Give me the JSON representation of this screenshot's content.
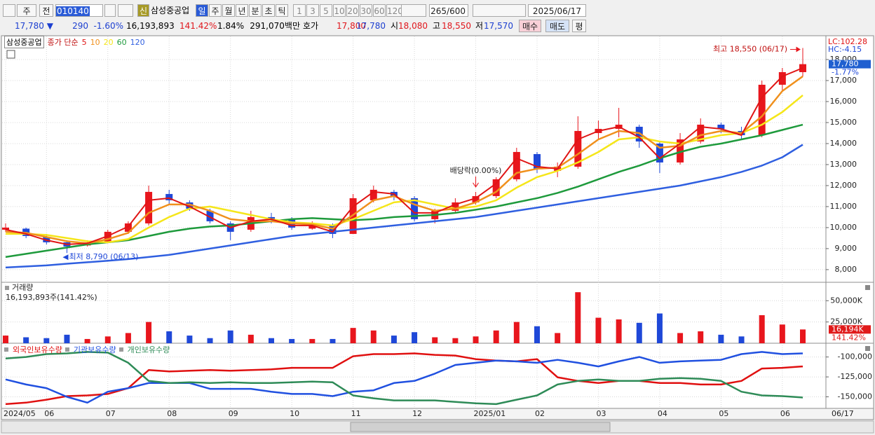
{
  "toolbar": {
    "row1": {
      "market": "주",
      "prev": "전",
      "code": "010140",
      "badge": "신",
      "name": "삼성중공업",
      "periods": [
        "일",
        "주",
        "월",
        "년",
        "분",
        "초",
        "틱"
      ],
      "intervals": [
        "1",
        "3",
        "5",
        "10",
        "20",
        "30",
        "60",
        "120"
      ],
      "count": 265,
      "max": "/600",
      "date": "2025/06/17"
    },
    "row2": {
      "price": "17,780",
      "arrow": "▼",
      "change": 290,
      "rate": "-1.60%",
      "volume": "16,193,893",
      "volume_ratio": "141.42%",
      "turnover": "1.84%",
      "amount": "291,070백만",
      "quote_label": "호가",
      "ask": "17,800",
      "bid": "17,780",
      "open_label": "시",
      "open": "18,080",
      "high_label": "고",
      "high": "18,550",
      "low_label": "저",
      "low": "17,570",
      "buy": "매수",
      "sell": "매도",
      "avg": "평"
    }
  },
  "chart_data": [
    {
      "type": "candlestick",
      "title": "삼성중공업",
      "ma_label": "종가 단순",
      "open": [
        9900,
        9950,
        9550,
        9300,
        9150,
        9300,
        9800,
        10200,
        11600,
        11200,
        10800,
        10200,
        9900,
        10500,
        10400,
        9950,
        10100,
        9700,
        11300,
        11700,
        11400,
        10400,
        10800,
        11200,
        11500,
        12300,
        13500,
        12700,
        12900,
        14500,
        14700,
        14800,
        14000,
        13100,
        14100,
        14900,
        14600,
        14400,
        16800,
        17400
      ],
      "high": [
        10200,
        10000,
        9700,
        9400,
        9400,
        9900,
        10300,
        12000,
        11800,
        11300,
        10900,
        10300,
        10800,
        10700,
        10500,
        10300,
        10200,
        11600,
        12000,
        11800,
        11500,
        10900,
        11400,
        11700,
        12400,
        13800,
        13600,
        13100,
        15300,
        15100,
        15700,
        14900,
        14100,
        14500,
        15200,
        15000,
        14800,
        17000,
        17600,
        18550
      ],
      "low": [
        9800,
        9500,
        9200,
        8790,
        9100,
        9250,
        9700,
        10100,
        11100,
        10800,
        10200,
        9400,
        9800,
        10200,
        9900,
        9900,
        9500,
        9700,
        11200,
        11300,
        10300,
        10200,
        10700,
        11100,
        11400,
        12200,
        12600,
        12400,
        12800,
        14200,
        14300,
        13800,
        12600,
        13000,
        14000,
        14500,
        14200,
        14300,
        16500,
        17200
      ],
      "close": [
        10000,
        9600,
        9300,
        9100,
        9300,
        9800,
        10200,
        11700,
        11300,
        10900,
        10300,
        9800,
        10500,
        10400,
        10000,
        10100,
        9700,
        11400,
        11800,
        11500,
        10400,
        10800,
        11200,
        11500,
        12300,
        13600,
        12800,
        12900,
        14600,
        14700,
        14900,
        14100,
        13100,
        14200,
        14900,
        14700,
        14400,
        16800,
        17400,
        17780
      ],
      "up_color": "#e8161d",
      "down_color": "#1f48d8",
      "series": [
        {
          "name": "5",
          "color": "#e01515",
          "values": [
            9900,
            9700,
            9400,
            9200,
            9250,
            9600,
            10050,
            11300,
            11400,
            11000,
            10500,
            10000,
            10300,
            10400,
            10100,
            10100,
            9800,
            11000,
            11700,
            11600,
            10700,
            10700,
            11100,
            11400,
            12100,
            13300,
            12900,
            12800,
            14200,
            14600,
            14800,
            14300,
            13300,
            14000,
            14800,
            14700,
            14400,
            16200,
            17200,
            17600
          ]
        },
        {
          "name": "10",
          "color": "#f0901c",
          "values": [
            9800,
            9750,
            9550,
            9350,
            9250,
            9450,
            9750,
            10700,
            11100,
            11100,
            10800,
            10400,
            10300,
            10300,
            10200,
            10150,
            9950,
            10600,
            11300,
            11500,
            11100,
            10800,
            10900,
            11200,
            11700,
            12600,
            12800,
            12850,
            13500,
            14200,
            14600,
            14500,
            13800,
            13900,
            14400,
            14600,
            14500,
            15300,
            16500,
            17200
          ]
        },
        {
          "name": "20",
          "color": "#f5e61a",
          "values": [
            9700,
            9700,
            9650,
            9500,
            9350,
            9300,
            9450,
            10000,
            10500,
            10900,
            11000,
            10800,
            10600,
            10400,
            10250,
            10200,
            10100,
            10400,
            10800,
            11200,
            11300,
            11100,
            10900,
            11000,
            11300,
            11900,
            12400,
            12700,
            13100,
            13600,
            14200,
            14300,
            14100,
            14000,
            14200,
            14400,
            14500,
            14900,
            15500,
            16300
          ]
        },
        {
          "name": "60",
          "color": "#1e9a3c",
          "values": [
            8600,
            8750,
            8900,
            9050,
            9200,
            9300,
            9400,
            9600,
            9800,
            9950,
            10050,
            10100,
            10200,
            10300,
            10400,
            10450,
            10400,
            10350,
            10400,
            10500,
            10550,
            10600,
            10700,
            10850,
            11000,
            11200,
            11400,
            11650,
            11950,
            12300,
            12650,
            12950,
            13300,
            13600,
            13850,
            14000,
            14200,
            14400,
            14650,
            14900
          ]
        },
        {
          "name": "120",
          "color": "#2f5fe0",
          "values": [
            8100,
            8150,
            8200,
            8280,
            8350,
            8420,
            8500,
            8600,
            8700,
            8850,
            9000,
            9150,
            9300,
            9450,
            9600,
            9700,
            9800,
            9900,
            10000,
            10100,
            10200,
            10300,
            10400,
            10500,
            10650,
            10800,
            10950,
            11100,
            11250,
            11400,
            11550,
            11700,
            11850,
            12000,
            12200,
            12400,
            12650,
            12950,
            13350,
            13950
          ]
        }
      ],
      "ylim": [
        7430,
        19000
      ],
      "yticks": [
        {
          "value": 8000,
          "label": "8,000"
        },
        {
          "value": 9000,
          "label": "9,000"
        },
        {
          "value": 10000,
          "label": "10,000"
        },
        {
          "value": 11000,
          "label": "11,000"
        },
        {
          "value": 12000,
          "label": "12,000"
        },
        {
          "value": 13000,
          "label": "13,000"
        },
        {
          "value": 14000,
          "label": "14,000"
        },
        {
          "value": 15000,
          "label": "15,000"
        },
        {
          "value": 16000,
          "label": "16,000"
        },
        {
          "value": 17000,
          "label": "17,000"
        },
        {
          "value": 18000,
          "label": "18,000"
        }
      ],
      "annotations": [
        {
          "text": "최고 18,550 (06/17)",
          "index": 39,
          "at": "high"
        },
        {
          "text": "최저 8,790 (06/13)",
          "index": 3,
          "at": "low"
        },
        {
          "text": "배당락(0.00%)",
          "index": 23,
          "at": "high"
        }
      ],
      "lc_label": "LC:102.28",
      "hc_label": "HC:-4.15",
      "last_label": "17,780",
      "last_change": "-1.77%",
      "grid": true
    },
    {
      "type": "bar",
      "title": "거래량",
      "subtitle": "16,193,893주(141.42%)",
      "values": [
        9000,
        7000,
        6000,
        10000,
        5000,
        8000,
        12000,
        25000,
        14000,
        9000,
        6000,
        15000,
        10000,
        6000,
        5000,
        5000,
        5000,
        18000,
        15000,
        9000,
        13000,
        7000,
        6000,
        8000,
        15000,
        25000,
        20000,
        12000,
        60000,
        30000,
        28000,
        24000,
        35000,
        12000,
        14000,
        10000,
        8000,
        33000,
        22000,
        16194
      ],
      "ylim": [
        0,
        70000
      ],
      "yticks": [
        {
          "value": 25000,
          "label": "25,000K"
        },
        {
          "value": 50000,
          "label": "50,000K"
        }
      ],
      "last_label": "16,194K",
      "last_ratio": "141.42%",
      "grid": true
    },
    {
      "type": "line",
      "categories": [
        "2024/05",
        null,
        "06",
        null,
        null,
        "07",
        null,
        null,
        "08",
        null,
        null,
        "09",
        null,
        null,
        "10",
        null,
        null,
        "11",
        null,
        null,
        "12",
        null,
        null,
        "2025/01",
        null,
        null,
        "02",
        null,
        null,
        "03",
        null,
        null,
        "04",
        null,
        null,
        "05",
        null,
        null,
        "06",
        null
      ],
      "end_label": "06/17",
      "series": [
        {
          "name": "외국인보유수량",
          "color": "#e01010",
          "values": [
            -159100,
            -157300,
            -153600,
            -149100,
            -148200,
            -146400,
            -139100,
            -116400,
            -118200,
            -117300,
            -116400,
            -117300,
            -116400,
            -115500,
            -113600,
            -113600,
            -113600,
            -99100,
            -96400,
            -96400,
            -95500,
            -97300,
            -98200,
            -102700,
            -104500,
            -105500,
            -102700,
            -125500,
            -130000,
            -132700,
            -130000,
            -130000,
            -132700,
            -132700,
            -134500,
            -134500,
            -130000,
            -114500,
            -113600,
            -111800
          ]
        },
        {
          "name": "기관보유수량",
          "color": "#2050e0",
          "values": [
            -128200,
            -134500,
            -139100,
            -150000,
            -157300,
            -143600,
            -139100,
            -132700,
            -132700,
            -132700,
            -140000,
            -140000,
            -140000,
            -143600,
            -146400,
            -146400,
            -149100,
            -143600,
            -141800,
            -132700,
            -130000,
            -120900,
            -110000,
            -107300,
            -104500,
            -105500,
            -107300,
            -103600,
            -107300,
            -111800,
            -105500,
            -100000,
            -107300,
            -105500,
            -104500,
            -103600,
            -96400,
            -93600,
            -96400,
            -95500
          ]
        },
        {
          "name": "개인보유수량",
          "color": "#2e8b57",
          "values": [
            -101800,
            -100000,
            -96400,
            -95500,
            -93600,
            -94500,
            -107300,
            -130000,
            -132700,
            -131800,
            -132700,
            -131800,
            -132700,
            -132700,
            -131800,
            -130900,
            -131800,
            -148200,
            -151800,
            -154500,
            -154500,
            -154500,
            -156400,
            -158200,
            -159100,
            -153600,
            -148200,
            -134500,
            -130000,
            -128200,
            -130000,
            -130000,
            -127300,
            -126400,
            -127300,
            -130000,
            -143600,
            -148200,
            -149100,
            -150900
          ]
        }
      ],
      "ylim": [
        -164500,
        -84500
      ],
      "yticks": [
        {
          "value": -150000,
          "label": "-150,000"
        },
        {
          "value": -125000,
          "label": "-125,000"
        },
        {
          "value": -100000,
          "label": "-100,000"
        }
      ],
      "grid": true
    }
  ]
}
